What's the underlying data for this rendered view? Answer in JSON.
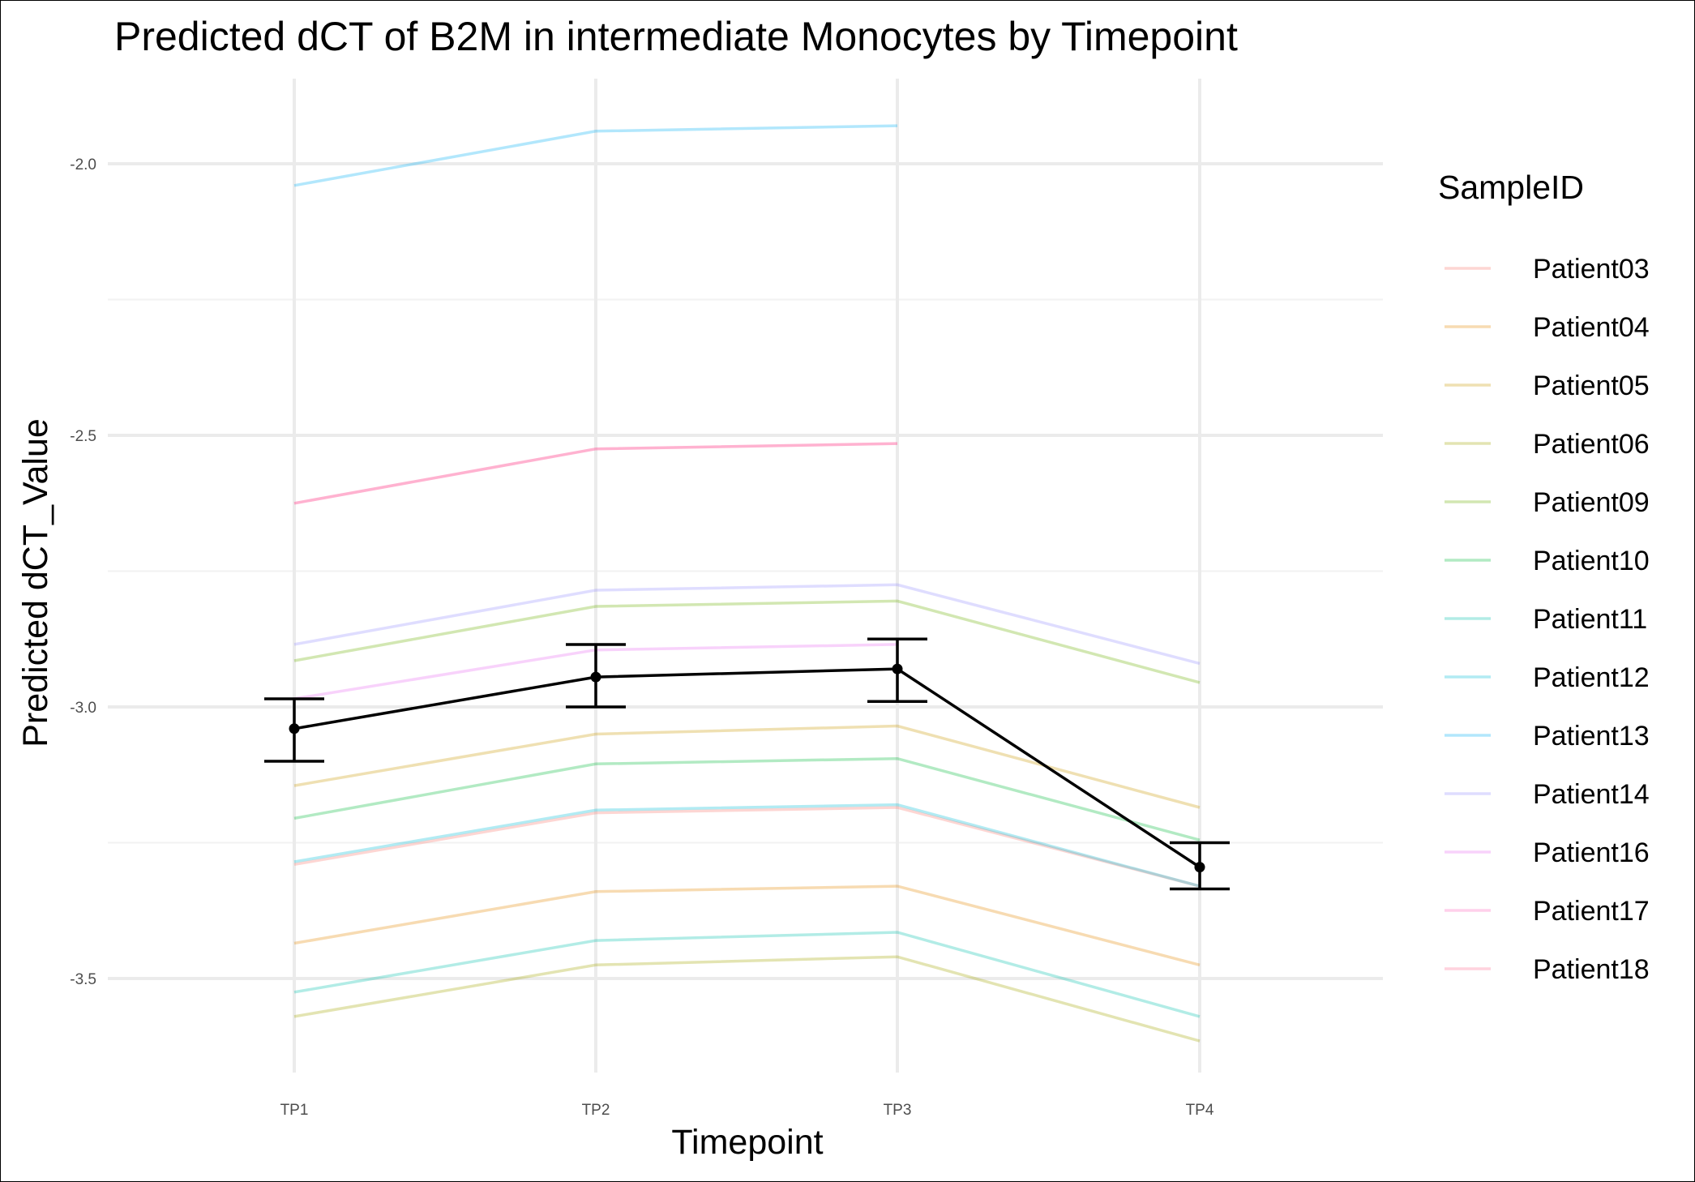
{
  "chart_data": {
    "type": "line",
    "title": "Predicted dCT of  B2M in  intermediate  Monocytes by Timepoint",
    "xlabel": "Timepoint",
    "ylabel": "Predicted dCT_Value",
    "categories": [
      "TP1",
      "TP2",
      "TP3",
      "TP4"
    ],
    "ylim": [
      -3.68,
      -1.85
    ],
    "yticks": [
      -3.5,
      -3.0,
      -2.5,
      -2.0
    ],
    "ytick_labels": [
      "-3.5",
      "-3.0",
      "-2.5",
      "-2.0"
    ],
    "legend_title": "SampleID",
    "legend_position": "right",
    "grid": true,
    "series": [
      {
        "name": "Patient03",
        "color": "#F8766D",
        "values": [
          -3.29,
          -3.195,
          -3.185,
          -3.33
        ]
      },
      {
        "name": "Patient04",
        "color": "#E58700",
        "values": [
          -3.435,
          -3.34,
          -3.33,
          -3.475
        ]
      },
      {
        "name": "Patient05",
        "color": "#C99800",
        "values": [
          -3.145,
          -3.05,
          -3.035,
          -3.185
        ]
      },
      {
        "name": "Patient06",
        "color": "#A3A500",
        "values": [
          -3.57,
          -3.475,
          -3.46,
          -3.615
        ]
      },
      {
        "name": "Patient09",
        "color": "#6BB100",
        "values": [
          -2.915,
          -2.815,
          -2.805,
          -2.955
        ]
      },
      {
        "name": "Patient10",
        "color": "#00BA38",
        "values": [
          -3.205,
          -3.105,
          -3.095,
          -3.245
        ]
      },
      {
        "name": "Patient11",
        "color": "#00BFAB",
        "values": [
          -3.525,
          -3.43,
          -3.415,
          -3.57
        ]
      },
      {
        "name": "Patient12",
        "color": "#00BCD8",
        "values": [
          -3.285,
          -3.19,
          -3.18,
          -3.33
        ]
      },
      {
        "name": "Patient13",
        "color": "#00B0F6",
        "values": [
          -2.04,
          -1.94,
          -1.93,
          null
        ]
      },
      {
        "name": "Patient14",
        "color": "#9590FF",
        "values": [
          -2.885,
          -2.785,
          -2.775,
          -2.92
        ]
      },
      {
        "name": "Patient16",
        "color": "#E76BF3",
        "values": [
          -2.985,
          -2.895,
          -2.885,
          null
        ]
      },
      {
        "name": "Patient17",
        "color": "#FF62BC",
        "values": [
          -2.625,
          -2.525,
          -2.515,
          null
        ]
      },
      {
        "name": "Patient18",
        "color": "#FF6C91",
        "values": [
          -2.625,
          -2.525,
          -2.515,
          null
        ]
      }
    ],
    "mean_series": {
      "color": "#000000",
      "values": [
        -3.04,
        -2.945,
        -2.93,
        -3.295
      ],
      "lower": [
        -3.1,
        -3.0,
        -2.99,
        -3.335
      ],
      "upper": [
        -2.985,
        -2.885,
        -2.875,
        -3.25
      ]
    }
  }
}
